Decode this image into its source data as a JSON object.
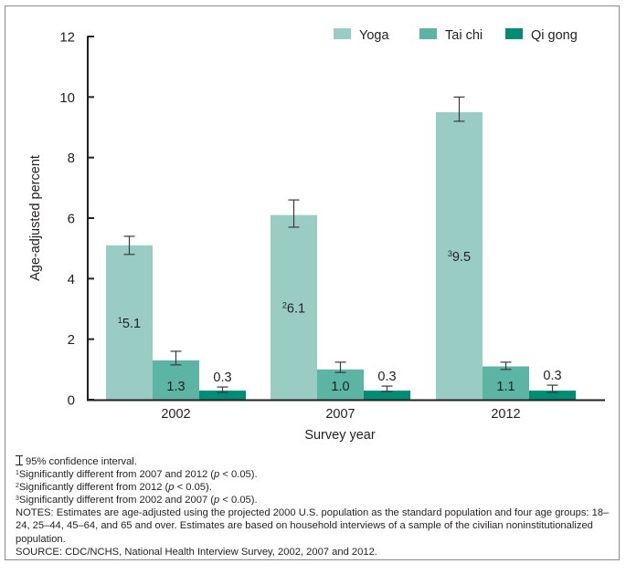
{
  "chart_data": {
    "type": "bar",
    "title": "",
    "xlabel": "Survey year",
    "ylabel": "Age-adjusted percent",
    "ylim": [
      0,
      12
    ],
    "yticks": [
      0,
      2,
      4,
      6,
      8,
      10,
      12
    ],
    "ytick_labels": [
      "0",
      "2",
      "4",
      "6",
      "8",
      "10",
      "12"
    ],
    "grid": false,
    "legend_position": "top-right",
    "categories": [
      "2002",
      "2007",
      "2012"
    ],
    "series": [
      {
        "name": "Yoga",
        "color": "#99cdc4",
        "values": [
          5.1,
          6.1,
          9.5
        ],
        "labels": [
          "5.1",
          "6.1",
          "9.5"
        ],
        "label_superscripts": [
          "1",
          "2",
          "3"
        ],
        "label_position": "inside",
        "ci_lower": [
          4.8,
          5.7,
          9.2
        ],
        "ci_upper": [
          5.4,
          6.6,
          10.0
        ]
      },
      {
        "name": "Tai chi",
        "color": "#5cb4a4",
        "values": [
          1.3,
          1.0,
          1.1
        ],
        "labels": [
          "1.3",
          "1.0",
          "1.1"
        ],
        "label_superscripts": [
          "",
          "",
          ""
        ],
        "label_position": "inside",
        "ci_lower": [
          1.15,
          0.9,
          1.0
        ],
        "ci_upper": [
          1.6,
          1.24,
          1.24
        ]
      },
      {
        "name": "Qi gong",
        "color": "#008c74",
        "values": [
          0.3,
          0.3,
          0.3
        ],
        "labels": [
          "0.3",
          "0.3",
          "0.3"
        ],
        "label_superscripts": [
          "",
          "",
          ""
        ],
        "label_position": "above",
        "ci_lower": [
          0.24,
          0.27,
          0.24
        ],
        "ci_upper": [
          0.42,
          0.45,
          0.48
        ]
      }
    ],
    "error_bars": "95% confidence interval"
  },
  "footnotes": {
    "ci_legend": "95% confidence interval.",
    "note1": {
      "sup": "1",
      "text_before": "Significantly different from 2007 and 2012 (",
      "p": "p",
      "text_after": " < 0.05)."
    },
    "note2": {
      "sup": "2",
      "text_before": "Significantly different from 2012 (",
      "p": "p",
      "text_after": " < 0.05)."
    },
    "note3": {
      "sup": "3",
      "text_before": "Significantly different from 2002 and 2007 (",
      "p": "p",
      "text_after": " < 0.05)."
    },
    "notes": "NOTES: Estimates are age-adjusted using the projected 2000 U.S. population as the standard population and four age groups: 18–24, 25–44, 45–64, and 65 and over. Estimates are based on household interviews of a sample of the civilian noninstitutionalized population.",
    "source": "SOURCE: CDC/NCHS, National Health Interview Survey, 2002, 2007 and 2012."
  },
  "colors": {
    "axis": "#231f20",
    "error_bar": "#3a3a3a",
    "frame": "#8a8a8a"
  }
}
